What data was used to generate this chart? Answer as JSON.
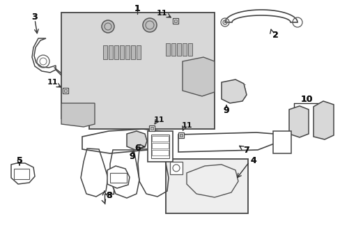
{
  "bg_color": "#ffffff",
  "line_color": "#333333",
  "part_fill": "#d8d8d8",
  "part_fill2": "#e8e8e8",
  "figsize": [
    4.89,
    3.6
  ],
  "dpi": 100
}
